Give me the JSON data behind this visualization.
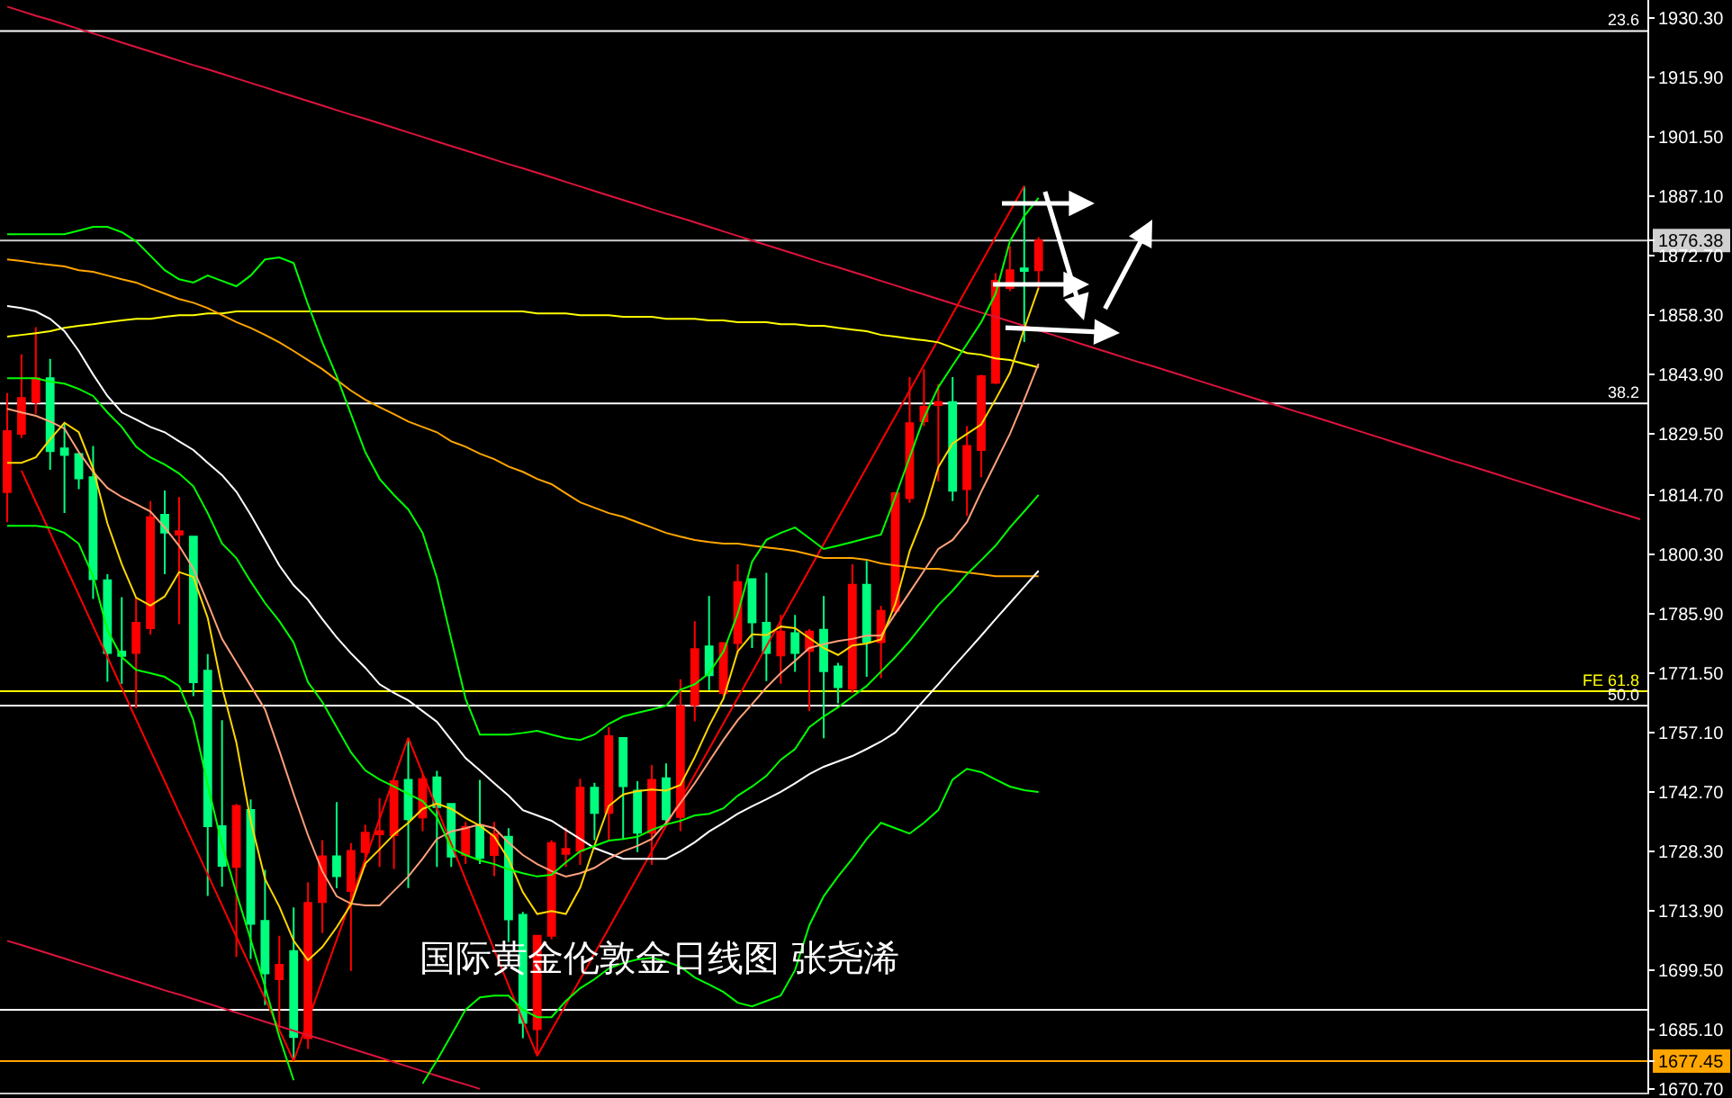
{
  "chart_data": {
    "type": "candlestick",
    "title": "国际黄金伦敦金日线图 张尧浠",
    "categories": [
      null,
      null,
      null,
      null,
      null,
      null,
      null,
      null,
      null,
      null,
      null,
      null,
      null,
      null,
      null,
      null,
      null,
      null,
      null,
      null,
      null,
      null,
      null,
      null,
      null,
      null,
      null,
      null,
      null,
      null,
      null,
      null,
      null,
      null,
      null,
      null,
      null,
      null,
      null,
      null,
      null,
      null,
      null,
      null,
      null,
      null,
      null,
      null,
      null,
      null,
      null,
      null,
      null,
      null,
      null,
      null,
      null,
      null,
      null,
      null,
      null,
      null,
      null,
      null,
      null,
      null,
      null,
      null,
      null,
      null,
      null,
      null,
      null,
      null,
      null,
      null,
      null,
      null,
      null,
      null,
      null,
      null,
      null,
      null,
      null,
      null,
      null,
      null,
      null,
      null,
      null,
      null,
      null,
      null,
      null,
      null,
      null,
      null,
      null,
      null,
      null,
      null,
      null,
      null,
      null,
      null,
      null,
      null,
      null,
      null,
      null,
      null,
      null,
      null,
      null
    ],
    "ohlc": [
      [
        1815.4,
        1839.4,
        1808.1,
        1830.2
      ],
      [
        1829.5,
        1848.8,
        1828.5,
        1838.2
      ],
      [
        1837.2,
        1855.4,
        1834.3,
        1843.0
      ],
      [
        1843.0,
        1847.7,
        1820.8,
        1825.3
      ],
      [
        1826.0,
        1832.1,
        1810.3,
        1824.4
      ],
      [
        1824.6,
        1824.8,
        1816.1,
        1818.7
      ],
      [
        1819.0,
        1826.6,
        1789.5,
        1794.3
      ],
      [
        1794.0,
        1795.5,
        1769.4,
        1776.4
      ],
      [
        1776.7,
        1789.9,
        1768.9,
        1775.7
      ],
      [
        1776.4,
        1789.9,
        1763.0,
        1783.7
      ],
      [
        1782.4,
        1813.2,
        1780.8,
        1809.3
      ],
      [
        1809.9,
        1815.8,
        1795.5,
        1805.6
      ],
      [
        1805.1,
        1814.2,
        1783.4,
        1805.9
      ],
      [
        1804.6,
        1804.6,
        1765.9,
        1769.3
      ],
      [
        1772.1,
        1776.1,
        1717.5,
        1734.4
      ],
      [
        1734.4,
        1760.1,
        1719.7,
        1724.8
      ],
      [
        1724.5,
        1739.8,
        1702.7,
        1739.3
      ],
      [
        1738.3,
        1740.9,
        1702.2,
        1710.7
      ],
      [
        1711.4,
        1723.8,
        1691.0,
        1698.7
      ],
      [
        1697.3,
        1707.8,
        1685.9,
        1700.8
      ],
      [
        1704.1,
        1714.7,
        1677.5,
        1683.3
      ],
      [
        1683.0,
        1720.8,
        1680.4,
        1715.8
      ],
      [
        1716.0,
        1731.0,
        1708.5,
        1727.1
      ],
      [
        1727.1,
        1740.2,
        1719.4,
        1722.3
      ],
      [
        1718.7,
        1730.3,
        1699.3,
        1728.4
      ],
      [
        1728.1,
        1734.7,
        1724.5,
        1732.8
      ],
      [
        1732.4,
        1741.2,
        1724.5,
        1733.2
      ],
      [
        1732.2,
        1745.6,
        1724.0,
        1745.3
      ],
      [
        1745.6,
        1755.8,
        1719.4,
        1736.1
      ],
      [
        1736.5,
        1747.0,
        1733.2,
        1745.8
      ],
      [
        1746.2,
        1747.8,
        1724.5,
        1739.0
      ],
      [
        1739.8,
        1739.8,
        1724.5,
        1727.0
      ],
      [
        1727.4,
        1735.4,
        1725.2,
        1734.2
      ],
      [
        1734.4,
        1745.6,
        1725.2,
        1726.7
      ],
      [
        1727.4,
        1735.4,
        1722.3,
        1732.5
      ],
      [
        1731.8,
        1733.9,
        1706.3,
        1711.8
      ],
      [
        1712.9,
        1713.6,
        1683.0,
        1686.7
      ],
      [
        1685.2,
        1707.8,
        1678.7,
        1707.8
      ],
      [
        1707.8,
        1731.0,
        1707.0,
        1730.3
      ],
      [
        1727.7,
        1734.0,
        1724.5,
        1728.9
      ],
      [
        1728.4,
        1745.9,
        1725.0,
        1743.7
      ],
      [
        1743.7,
        1744.9,
        1731.0,
        1737.6
      ],
      [
        1737.6,
        1758.4,
        1731.0,
        1756.2
      ],
      [
        1755.8,
        1755.8,
        1731.3,
        1744.1
      ],
      [
        1743.0,
        1745.3,
        1728.1,
        1732.8
      ],
      [
        1732.8,
        1749.2,
        1725.0,
        1745.6
      ],
      [
        1746.0,
        1749.6,
        1735.4,
        1736.1
      ],
      [
        1736.6,
        1770.0,
        1733.2,
        1763.5
      ],
      [
        1763.8,
        1784.1,
        1759.8,
        1777.3
      ],
      [
        1778.0,
        1790.2,
        1767.4,
        1771.0
      ],
      [
        1766.7,
        1779.0,
        1765.9,
        1778.8
      ],
      [
        1778.8,
        1797.9,
        1776.1,
        1793.6
      ],
      [
        1794.3,
        1794.3,
        1777.6,
        1783.8
      ],
      [
        1783.7,
        1795.8,
        1769.6,
        1776.4
      ],
      [
        1775.8,
        1785.6,
        1768.9,
        1781.6
      ],
      [
        1781.2,
        1785.6,
        1771.8,
        1776.4
      ],
      [
        1776.9,
        1782.2,
        1762.3,
        1781.6
      ],
      [
        1782.0,
        1790.2,
        1755.7,
        1772.0
      ],
      [
        1773.1,
        1774.0,
        1764.2,
        1768.1
      ],
      [
        1767.7,
        1797.9,
        1766.7,
        1792.9
      ],
      [
        1792.9,
        1798.7,
        1770.6,
        1779.0
      ],
      [
        1779.0,
        1787.8,
        1770.3,
        1786.6
      ],
      [
        1786.6,
        1815.4,
        1785.6,
        1815.1
      ],
      [
        1813.9,
        1843.3,
        1812.8,
        1832.1
      ],
      [
        1832.6,
        1845.2,
        1831.4,
        1836.1
      ],
      [
        1836.5,
        1841.6,
        1818.0,
        1837.2
      ],
      [
        1837.2,
        1843.3,
        1813.2,
        1815.7
      ],
      [
        1816.1,
        1831.4,
        1809.6,
        1826.6
      ],
      [
        1825.6,
        1843.8,
        1819.0,
        1843.5
      ],
      [
        1841.9,
        1868.5,
        1841.6,
        1866.6
      ],
      [
        1864.9,
        1875.0,
        1864.1,
        1869.2
      ],
      [
        1869.6,
        1889.6,
        1851.8,
        1869.0
      ],
      [
        1869.2,
        1877.2,
        1864.9,
        1876.38
      ],
      null,
      null,
      null,
      null,
      null,
      null,
      null,
      null,
      null,
      null,
      null,
      null,
      null,
      null,
      null,
      null,
      null,
      null,
      null,
      null,
      null,
      null,
      null,
      null,
      null,
      null,
      null,
      null,
      null,
      null,
      null,
      null,
      null,
      null,
      null,
      null,
      null,
      null,
      null,
      null,
      null,
      null
    ],
    "colors": [
      "#ff0000",
      "#ff0000",
      "#ff0000",
      "#00ff7f",
      "#00ff7f",
      "#00ff7f",
      "#00ff7f",
      "#00ff7f",
      "#00ff7f",
      "#ff0000",
      "#ff0000",
      "#00ff7f",
      "#ff0000",
      "#00ff7f",
      "#00ff7f",
      "#00ff7f",
      "#ff0000",
      "#00ff7f",
      "#00ff7f",
      "#ff0000",
      "#00ff7f",
      "#ff0000",
      "#ff0000",
      "#00ff7f",
      "#ff0000",
      "#ff0000",
      "#ff0000",
      "#ff0000",
      "#00ff7f",
      "#ff0000",
      "#00ff7f",
      "#00ff7f",
      "#ff0000",
      "#00ff7f",
      "#ff0000",
      "#00ff7f",
      "#00ff7f",
      "#ff0000",
      "#ff0000",
      "#ff0000",
      "#ff0000",
      "#00ff7f",
      "#ff0000",
      "#00ff7f",
      "#00ff7f",
      "#ff0000",
      "#00ff7f",
      "#ff0000",
      "#ff0000",
      "#00ff7f",
      "#ff0000",
      "#ff0000",
      "#00ff7f",
      "#00ff7f",
      "#ff0000",
      "#00ff7f",
      "#ff0000",
      "#00ff7f",
      "#00ff7f",
      "#ff0000",
      "#00ff7f",
      "#ff0000",
      "#ff0000",
      "#ff0000",
      "#ff0000",
      "#ff0000",
      "#00ff7f",
      "#ff0000",
      "#ff0000",
      "#ff0000",
      "#ff0000",
      "#00ff7f",
      "#ff0000",
      null,
      null,
      null,
      null,
      null,
      null,
      null,
      null,
      null,
      null,
      null,
      null,
      null,
      null,
      null,
      null,
      null,
      null,
      null,
      null,
      null,
      null,
      null,
      null,
      null,
      null,
      null,
      null,
      null,
      null,
      null,
      null,
      null,
      null,
      null,
      null,
      null,
      null,
      null,
      null,
      null,
      null
    ],
    "series": [
      {
        "type": "line",
        "color": "#dc143c",
        "values": [
          1933.1,
          1932.0,
          1930.9,
          1929.9,
          1928.8,
          1927.7,
          1926.6,
          1925.5,
          1924.4,
          1923.3,
          1922.2,
          1921.1,
          1920.0,
          1918.9,
          1917.9,
          1916.8,
          1915.7,
          1914.6,
          1913.5,
          1912.4,
          1911.3,
          1910.2,
          1909.1,
          1908.0,
          1906.9,
          1905.9,
          1904.8,
          1903.7,
          1902.6,
          1901.5,
          1900.4,
          1899.3,
          1898.2,
          1897.1,
          1896.0,
          1894.9,
          1893.9,
          1892.8,
          1891.7,
          1890.6,
          1889.5,
          1888.4,
          1887.3,
          1886.2,
          1885.1,
          1884.0,
          1882.9,
          1881.9,
          1880.8,
          1879.7,
          1878.6,
          1877.5,
          1876.4,
          1875.3,
          1874.2,
          1873.1,
          1872.0,
          1870.9,
          1869.9,
          1868.8,
          1867.7,
          1866.6,
          1865.5,
          1864.4,
          1863.3,
          1862.2,
          1861.1,
          1860.0,
          1858.9,
          1857.9,
          1856.8,
          1855.7,
          1854.6,
          1853.5,
          1852.4,
          1851.3,
          1850.2,
          1849.1,
          1848.0,
          1846.9,
          1845.9,
          1844.8,
          1843.7,
          1842.6,
          1841.5,
          1840.4,
          1839.3,
          1838.2,
          1837.1,
          1836.0,
          1834.9,
          1833.9,
          1832.8,
          1831.7,
          1830.6,
          1829.5,
          1828.4,
          1827.3,
          1826.2,
          1825.1,
          1824.0,
          1822.9,
          1821.9,
          1820.8,
          1819.7,
          1818.6,
          1817.5,
          1816.4,
          1815.3,
          1814.2,
          1813.1,
          1812.0,
          1810.9,
          1809.9,
          1808.8
        ]
      },
      {
        "type": "line",
        "color": "#dc143c",
        "values": [
          1706.6,
          1705.6,
          1704.5,
          1703.4,
          1702.3,
          1701.2,
          1700.1,
          1699.0,
          1697.9,
          1696.8,
          1695.7,
          1694.6,
          1693.6,
          1692.5,
          1691.4,
          1690.3,
          1689.2,
          1688.1,
          1687.0,
          1685.9,
          1684.8,
          1683.7,
          1682.7,
          1681.6,
          1680.5,
          1679.4,
          1678.3,
          1677.2,
          1676.1,
          1675.0,
          1673.9,
          1672.8,
          1671.8,
          1670.7,
          null,
          null,
          null,
          null,
          null,
          null,
          null,
          null,
          null,
          null,
          null,
          null,
          null,
          null,
          null,
          null,
          null,
          null,
          null,
          null,
          null,
          null,
          null,
          null,
          null,
          null,
          null,
          null,
          null,
          null,
          null,
          null,
          null,
          null,
          null,
          null,
          null,
          null,
          null,
          null,
          null,
          null,
          null,
          null,
          null,
          null,
          null,
          null,
          null,
          null,
          null,
          null,
          null,
          null,
          null,
          null,
          null,
          null,
          null,
          null,
          null,
          null,
          null,
          null,
          null,
          null,
          null,
          null,
          null,
          null,
          null,
          null,
          null,
          null,
          null,
          null,
          null,
          null,
          null,
          null,
          null
        ]
      },
      {
        "type": "line",
        "color": "#ff0000",
        "values": [
          null,
          1820.6,
          1813.0,
          1805.5,
          1798.0,
          1790.5,
          1782.9,
          1775.4,
          1767.9,
          1760.3,
          1752.8,
          1745.3,
          1737.7,
          1730.2,
          1722.7,
          1715.2,
          1707.6,
          1700.1,
          1692.6,
          1685.0,
          1677.5,
          1687.3,
          1697.1,
          1706.8,
          1716.6,
          1726.4,
          1736.2,
          1746.0,
          1755.8,
          1747.2,
          1738.7,
          1730.1,
          1721.5,
          1713.0,
          1704.4,
          1695.8,
          1687.3,
          1678.7,
          1684.9,
          1691.1,
          1697.3,
          1703.5,
          1709.7,
          1715.9,
          1722.1,
          1728.3,
          1734.5,
          1740.7,
          1746.9,
          1753.1,
          1759.3,
          1765.5,
          1771.7,
          1778.0,
          1784.2,
          1790.4,
          1796.6,
          1802.8,
          1809.0,
          1815.2,
          1821.4,
          1827.6,
          1833.8,
          1840.0,
          1846.2,
          1852.4,
          1858.6,
          1864.8,
          1871.0,
          1877.2,
          1883.4,
          1889.6,
          null,
          null,
          null,
          null,
          null,
          null,
          null,
          null,
          null,
          null,
          null,
          null,
          null,
          null,
          null,
          null,
          null,
          null,
          null,
          null,
          null,
          null,
          null,
          null,
          null,
          null,
          null,
          null,
          null,
          null,
          null,
          null,
          null,
          null,
          null,
          null,
          null,
          null,
          null,
          null,
          null,
          null,
          null
        ]
      },
      {
        "type": "line",
        "color": "#ffff00",
        "values": [
          1853.1,
          1853.5,
          1853.9,
          1854.4,
          1855.2,
          1855.7,
          1856.1,
          1856.6,
          1857.0,
          1857.4,
          1857.4,
          1857.9,
          1858.3,
          1858.3,
          1858.7,
          1858.7,
          1859.2,
          1859.2,
          1859.2,
          1859.2,
          1859.2,
          1859.2,
          1859.2,
          1859.2,
          1859.2,
          1859.2,
          1859.2,
          1859.2,
          1859.2,
          1859.2,
          1859.2,
          1859.2,
          1859.2,
          1859.2,
          1859.2,
          1859.2,
          1859.2,
          1858.7,
          1858.7,
          1858.7,
          1858.3,
          1858.3,
          1858.3,
          1857.9,
          1857.9,
          1857.9,
          1857.4,
          1857.4,
          1857.4,
          1857.0,
          1857.0,
          1856.6,
          1856.6,
          1856.6,
          1856.1,
          1856.1,
          1855.7,
          1855.7,
          1855.2,
          1854.8,
          1854.4,
          1853.5,
          1853.1,
          1852.6,
          1852.2,
          1851.7,
          1850.4,
          1849.1,
          1848.7,
          1847.8,
          1847.4,
          1846.5,
          1845.6,
          null,
          null,
          null,
          null,
          null,
          null,
          null,
          null,
          null,
          null,
          null,
          null,
          null,
          null,
          null,
          null,
          null,
          null,
          null,
          null,
          null,
          null,
          null,
          null,
          null,
          null,
          null,
          null,
          null,
          null,
          null,
          null,
          null,
          null,
          null,
          null,
          null,
          null,
          null,
          null,
          null,
          null
        ]
      },
      {
        "type": "line",
        "color": "#ffa500",
        "values": [
          1871.8,
          1871.4,
          1870.9,
          1870.5,
          1870.1,
          1869.2,
          1868.8,
          1867.9,
          1867.0,
          1866.2,
          1864.8,
          1863.5,
          1862.2,
          1861.3,
          1860.0,
          1858.3,
          1856.6,
          1855.2,
          1853.5,
          1851.7,
          1849.6,
          1847.4,
          1845.2,
          1842.6,
          1840.0,
          1837.8,
          1836.0,
          1834.3,
          1832.5,
          1831.2,
          1829.9,
          1827.7,
          1826.4,
          1824.7,
          1823.4,
          1821.6,
          1820.3,
          1818.6,
          1817.3,
          1815.1,
          1812.9,
          1811.6,
          1810.3,
          1809.4,
          1808.1,
          1806.8,
          1805.5,
          1804.6,
          1803.8,
          1803.3,
          1802.9,
          1802.9,
          1802.4,
          1802.0,
          1801.6,
          1801.1,
          1800.3,
          1799.4,
          1799.4,
          1799.4,
          1799.0,
          1798.1,
          1797.6,
          1797.2,
          1796.8,
          1796.8,
          1796.3,
          1795.9,
          1795.5,
          1795.0,
          1795.0,
          1795.0,
          1795.0,
          null,
          null,
          null,
          null,
          null,
          null,
          null,
          null,
          null,
          null,
          null,
          null,
          null,
          null,
          null,
          null,
          null,
          null,
          null,
          null,
          null,
          null,
          null,
          null,
          null,
          null,
          null,
          null,
          null,
          null,
          null,
          null,
          null,
          null,
          null,
          null,
          null,
          null,
          null,
          null,
          null,
          null
        ]
      },
      {
        "type": "line",
        "color": "#ffffff",
        "values": [
          1860.5,
          1860.0,
          1859.2,
          1857.4,
          1854.4,
          1849.6,
          1843.9,
          1838.7,
          1834.7,
          1833.0,
          1831.2,
          1829.9,
          1827.7,
          1825.6,
          1822.5,
          1819.5,
          1815.5,
          1809.9,
          1803.8,
          1797.6,
          1792.8,
          1789.3,
          1784.6,
          1780.2,
          1776.3,
          1772.8,
          1768.8,
          1766.7,
          1764.9,
          1762.3,
          1759.7,
          1755.3,
          1750.9,
          1747.9,
          1744.8,
          1741.8,
          1738.3,
          1737.0,
          1735.7,
          1733.5,
          1731.3,
          1729.1,
          1727.8,
          1726.5,
          1726.5,
          1726.5,
          1726.5,
          1728.3,
          1730.5,
          1733.1,
          1735.2,
          1737.4,
          1739.2,
          1740.9,
          1742.7,
          1744.8,
          1747.0,
          1748.8,
          1750.1,
          1751.4,
          1753.1,
          1754.9,
          1757.1,
          1761.0,
          1764.9,
          1768.8,
          1772.8,
          1776.7,
          1780.6,
          1784.6,
          1788.5,
          1792.4,
          1796.3,
          null,
          null,
          null,
          null,
          null,
          null,
          null,
          null,
          null,
          null,
          null,
          null,
          null,
          null,
          null,
          null,
          null,
          null,
          null,
          null,
          null,
          null,
          null,
          null,
          null,
          null,
          null,
          null,
          null,
          null,
          null,
          null,
          null,
          null,
          null,
          null,
          null,
          null,
          null,
          null,
          null,
          null
        ]
      },
      {
        "type": "line",
        "color": "#ffa07a",
        "values": [
          1835.6,
          1834.7,
          1833.9,
          1832.5,
          1830.8,
          1825.1,
          1820.3,
          1816.4,
          1814.2,
          1812.5,
          1810.7,
          1806.8,
          1802.4,
          1796.8,
          1788.5,
          1779.8,
          1774.1,
          1768.4,
          1762.7,
          1752.7,
          1742.2,
          1732.2,
          1723.5,
          1717.4,
          1715.6,
          1715.2,
          1715.2,
          1718.7,
          1722.2,
          1726.5,
          1731.3,
          1733.1,
          1733.9,
          1734.8,
          1733.9,
          1730.4,
          1727.4,
          1725.2,
          1723.5,
          1722.2,
          1723.0,
          1724.3,
          1726.5,
          1728.3,
          1729.6,
          1731.3,
          1735.2,
          1740.0,
          1744.8,
          1750.1,
          1755.3,
          1760.1,
          1764.0,
          1768.0,
          1771.5,
          1774.5,
          1777.6,
          1778.5,
          1779.3,
          1779.8,
          1780.6,
          1780.6,
          1785.9,
          1791.1,
          1796.3,
          1801.6,
          1803.8,
          1808.1,
          1815.5,
          1822.5,
          1829.5,
          1837.8,
          1846.5,
          null,
          null,
          null,
          null,
          null,
          null,
          null,
          null,
          null,
          null,
          null,
          null,
          null,
          null,
          null,
          null,
          null,
          null,
          null,
          null,
          null,
          null,
          null,
          null,
          null,
          null,
          null,
          null,
          null,
          null,
          null,
          null,
          null,
          null,
          null,
          null,
          null,
          null,
          null,
          null,
          null,
          null
        ]
      },
      {
        "type": "line",
        "color": "#ffd700",
        "values": [
          1822.5,
          1822.5,
          1823.8,
          1828.2,
          1832.2,
          1829.9,
          1821.1,
          1807.8,
          1797.9,
          1789.8,
          1787.9,
          1790.1,
          1796.0,
          1794.8,
          1784.9,
          1768.0,
          1754.7,
          1735.7,
          1721.6,
          1714.9,
          1706.6,
          1701.9,
          1705.1,
          1709.9,
          1715.4,
          1725.3,
          1728.8,
          1732.4,
          1735.2,
          1738.6,
          1739.9,
          1738.6,
          1736.4,
          1734.5,
          1731.9,
          1726.4,
          1718.4,
          1713.1,
          1713.8,
          1713.1,
          1719.5,
          1729.7,
          1739.3,
          1742.1,
          1742.9,
          1743.3,
          1743.0,
          1744.4,
          1751.1,
          1758.7,
          1765.3,
          1776.8,
          1780.9,
          1780.7,
          1782.8,
          1782.4,
          1780.0,
          1777.6,
          1775.9,
          1778.2,
          1778.7,
          1779.7,
          1788.3,
          1801.1,
          1809.8,
          1821.4,
          1827.2,
          1829.5,
          1831.8,
          1837.9,
          1844.3,
          1855.0,
          1864.9,
          null,
          null,
          null,
          null,
          null,
          null,
          null,
          null,
          null,
          null,
          null,
          null,
          null,
          null,
          null,
          null,
          null,
          null,
          null,
          null,
          null,
          null,
          null,
          null,
          null,
          null,
          null,
          null,
          null,
          null,
          null,
          null,
          null,
          null,
          null,
          null,
          null,
          null,
          null,
          null,
          null,
          null
        ]
      },
      {
        "type": "line",
        "color": "#00ff00",
        "values": [
          1877.9,
          1877.9,
          1877.9,
          1877.9,
          1877.9,
          1878.8,
          1879.7,
          1879.7,
          1878.4,
          1876.2,
          1872.7,
          1869.2,
          1867.0,
          1866.2,
          1867.9,
          1866.6,
          1865.3,
          1867.9,
          1871.8,
          1872.3,
          1870.9,
          1860.9,
          1851.7,
          1843.5,
          1834.3,
          1825.1,
          1818.6,
          1814.7,
          1811.2,
          1805.5,
          1794.6,
          1779.8,
          1765.3,
          1756.6,
          1756.6,
          1756.6,
          1757.0,
          1757.5,
          1756.6,
          1755.7,
          1755.3,
          1756.6,
          1759.2,
          1761.0,
          1761.9,
          1762.7,
          1763.6,
          1767.5,
          1768.8,
          1771.5,
          1776.7,
          1785.9,
          1798.5,
          1803.8,
          1805.5,
          1806.8,
          1804.2,
          1801.6,
          1802.4,
          1803.3,
          1804.2,
          1805.1,
          1814.2,
          1823.8,
          1833.4,
          1840.8,
          1846.1,
          1851.3,
          1856.6,
          1863.5,
          1876.2,
          1882.3,
          1886.7,
          null,
          null,
          null,
          null,
          null,
          null,
          null,
          null,
          null,
          null,
          null,
          null,
          null,
          null,
          null,
          null,
          null,
          null,
          null,
          null,
          null,
          null,
          null,
          null,
          null,
          null,
          null,
          null,
          null,
          null,
          null,
          null,
          null,
          null,
          null,
          null,
          null,
          null,
          null,
          null,
          null,
          null
        ]
      },
      {
        "type": "line",
        "color": "#00ff00",
        "values": [
          1843.0,
          1843.0,
          1843.0,
          1842.2,
          1841.7,
          1840.4,
          1838.7,
          1834.7,
          1831.2,
          1826.4,
          1823.8,
          1822.1,
          1819.9,
          1816.8,
          1810.3,
          1802.9,
          1799.4,
          1793.7,
          1788.5,
          1784.1,
          1778.9,
          1769.3,
          1764.5,
          1758.4,
          1752.3,
          1747.9,
          1745.7,
          1744.0,
          1742.2,
          1740.5,
          1736.6,
          1729.1,
          1727.4,
          1726.1,
          1725.2,
          1723.9,
          1723.0,
          1722.2,
          1722.6,
          1725.6,
          1728.3,
          1729.6,
          1730.9,
          1731.3,
          1731.8,
          1733.5,
          1734.8,
          1735.7,
          1737.0,
          1737.4,
          1738.7,
          1741.8,
          1744.0,
          1746.6,
          1750.5,
          1753.1,
          1758.4,
          1761.0,
          1763.2,
          1765.8,
          1768.4,
          1771.9,
          1775.4,
          1779.3,
          1783.7,
          1788.0,
          1791.5,
          1795.5,
          1798.9,
          1802.4,
          1806.8,
          1810.7,
          1814.7,
          null,
          null,
          null,
          null,
          null,
          null,
          null,
          null,
          null,
          null,
          null,
          null,
          null,
          null,
          null,
          null,
          null,
          null,
          null,
          null,
          null,
          null,
          null,
          null,
          null,
          null,
          null,
          null,
          null,
          null,
          null,
          null,
          null,
          null,
          null,
          null,
          null,
          null,
          null,
          null,
          null,
          null
        ]
      },
      {
        "type": "line",
        "color": "#00ff00",
        "values": [
          1807.2,
          1807.2,
          1807.2,
          1806.8,
          1805.5,
          1802.9,
          1795.0,
          1781.9,
          1775.4,
          1772.3,
          1771.5,
          1770.6,
          1768.4,
          1760.1,
          1744.4,
          1730.0,
          1718.2,
          1706.9,
          1695.5,
          1683.3,
          1672.8,
          null,
          null,
          null,
          null,
          null,
          null,
          null,
          null,
          1672.0,
          1677.6,
          1683.7,
          1689.9,
          1692.9,
          1693.3,
          1693.3,
          1689.9,
          1688.1,
          1688.1,
          1692.0,
          1695.1,
          1697.3,
          1699.9,
          1701.2,
          1702.1,
          1702.5,
          1701.6,
          1700.3,
          1697.7,
          1696.0,
          1694.2,
          1691.6,
          1690.7,
          1692.0,
          1693.3,
          1699.5,
          1710.4,
          1717.4,
          1722.2,
          1726.5,
          1731.3,
          1735.2,
          1733.9,
          1732.6,
          1735.2,
          1738.3,
          1745.7,
          1748.3,
          1747.5,
          1745.7,
          1744.0,
          1743.1,
          1742.7,
          null,
          null,
          null,
          null,
          null,
          null,
          null,
          null,
          null,
          null,
          null,
          null,
          null,
          null,
          null,
          null,
          null,
          null,
          null,
          null,
          null,
          null,
          null,
          null,
          null,
          null,
          null,
          null,
          null,
          null,
          null,
          null,
          null,
          null,
          null,
          null,
          null,
          null,
          null,
          null,
          null,
          null
        ]
      }
    ],
    "ylim": [
      1669.8,
      1934.7
    ],
    "yticks": [
      {
        "value": 1930.3,
        "label": "1930.30"
      },
      {
        "value": 1915.9,
        "label": "1915.90"
      },
      {
        "value": 1901.5,
        "label": "1901.50"
      },
      {
        "value": 1887.1,
        "label": "1887.10"
      },
      1876.38,
      {
        "value": 1872.7,
        "label": "1872.70"
      },
      {
        "value": 1858.3,
        "label": "1858.30"
      },
      {
        "value": 1843.9,
        "label": "1843.90"
      },
      {
        "value": 1829.5,
        "label": "1829.50"
      },
      {
        "value": 1814.7,
        "label": "1814.70"
      },
      {
        "value": 1800.3,
        "label": "1800.30"
      },
      {
        "value": 1785.9,
        "label": "1785.90"
      },
      {
        "value": 1771.5,
        "label": "1771.50"
      },
      {
        "value": 1757.1,
        "label": "1757.10"
      },
      {
        "value": 1742.7,
        "label": "1742.70"
      },
      {
        "value": 1728.3,
        "label": "1728.30"
      },
      {
        "value": 1713.9,
        "label": "1713.90"
      },
      {
        "value": 1699.5,
        "label": "1699.50"
      },
      {
        "value": 1685.1,
        "label": "1685.10"
      },
      1677.45,
      {
        "value": 1670.7,
        "label": "1670.70"
      }
    ],
    "tick_labels": "y",
    "ref_lines": [
      {
        "axis": "y",
        "value": 1927.2,
        "color": "#ffffff"
      },
      {
        "axis": "y",
        "value": 1836.9,
        "color": "#ffffff"
      },
      {
        "axis": "y",
        "value": 1767.1,
        "color": "#ffff00"
      },
      {
        "axis": "y",
        "value": 1763.6,
        "color": "#ffffff"
      },
      {
        "axis": "y",
        "value": 1689.9,
        "color": "#ffffff"
      },
      {
        "axis": "y",
        "value": 1876.38,
        "color": "#d0d0d0"
      },
      {
        "axis": "y",
        "value": 1677.45,
        "color": "#ffa500"
      }
    ],
    "annotations": [
      {
        "text": "23.6",
        "y": 1927.2
      },
      {
        "text": "38.2",
        "y": 1836.9
      },
      {
        "text": "FE 61.8",
        "y": 1767.1
      },
      {
        "text": "50.0",
        "y": 1763.6
      }
    ]
  }
}
